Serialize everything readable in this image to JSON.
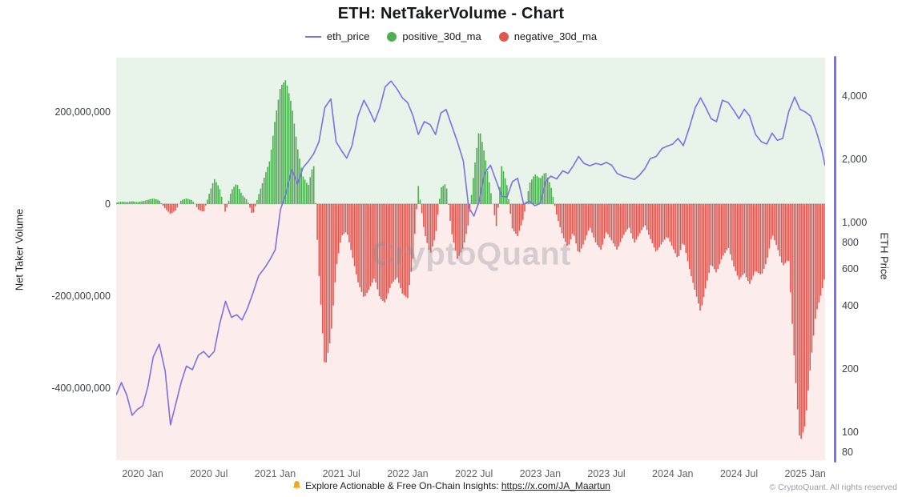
{
  "title": "ETH: NetTakerVolume - Chart",
  "watermark": "CryptoQuant",
  "copyright": "© CryptoQuant. All rights reserved",
  "colors": {
    "price": "#7c70e2",
    "positive": "#4caf50",
    "negative": "#e15750",
    "bell": "#f5a623"
  },
  "legend": {
    "items": [
      {
        "label": "eth_price",
        "marker": "line"
      },
      {
        "label": "positive_30d_ma",
        "marker": "dot"
      },
      {
        "label": "negative_30d_ma",
        "marker": "dot"
      }
    ]
  },
  "footer": {
    "prefix": "Explore Actionable & Free On-Chain Insights:",
    "link": "https://x.com/JA_Maartun"
  },
  "chart_data": {
    "type": "combo",
    "title": "ETH: NetTakerVolume - Chart",
    "background": {
      "positive": "#e8f4ea",
      "negative": "#fdecec"
    },
    "x_axis": {
      "unit": "decimal_year",
      "domain": [
        2019.8,
        2025.15
      ],
      "ticks": [
        {
          "value": 2020.0,
          "label": "2020 Jan"
        },
        {
          "value": 2020.5,
          "label": "2020 Jul"
        },
        {
          "value": 2021.0,
          "label": "2021 Jan"
        },
        {
          "value": 2021.5,
          "label": "2021 Jul"
        },
        {
          "value": 2022.0,
          "label": "2022 Jan"
        },
        {
          "value": 2022.5,
          "label": "2022 Jul"
        },
        {
          "value": 2023.0,
          "label": "2023 Jan"
        },
        {
          "value": 2023.5,
          "label": "2023 Jul"
        },
        {
          "value": 2024.0,
          "label": "2024 Jan"
        },
        {
          "value": 2024.5,
          "label": "2024 Jul"
        },
        {
          "value": 2025.0,
          "label": "2025 Jan"
        }
      ]
    },
    "left_axis": {
      "title": "Net Taker Volume",
      "scale": "linear",
      "unit": "millions",
      "min": -557,
      "max": 318,
      "ticks": [
        {
          "value": 200,
          "label": "200,000,000"
        },
        {
          "value": 0,
          "label": "0"
        },
        {
          "value": -200,
          "label": "-200,000,000"
        },
        {
          "value": -400,
          "label": "-400,000,000"
        }
      ]
    },
    "right_axis": {
      "title": "ETH Price",
      "scale": "log",
      "min": 73.3,
      "max": 6100,
      "ticks": [
        {
          "value": 4000,
          "label": "4,000"
        },
        {
          "value": 2000,
          "label": "2,000"
        },
        {
          "value": 1000,
          "label": "1,000"
        },
        {
          "value": 800,
          "label": "800"
        },
        {
          "value": 600,
          "label": "600"
        },
        {
          "value": 400,
          "label": "400"
        },
        {
          "value": 200,
          "label": "200"
        },
        {
          "value": 100,
          "label": "100"
        },
        {
          "value": 80,
          "label": "80"
        }
      ]
    },
    "series": [
      {
        "name": "eth_price",
        "type": "line",
        "axis": "right",
        "points": [
          [
            2019.8,
            150
          ],
          [
            2019.84,
            172
          ],
          [
            2019.88,
            150
          ],
          [
            2019.92,
            120
          ],
          [
            2019.96,
            128
          ],
          [
            2020.0,
            133
          ],
          [
            2020.04,
            165
          ],
          [
            2020.08,
            228
          ],
          [
            2020.125,
            262
          ],
          [
            2020.17,
            195
          ],
          [
            2020.21,
            108
          ],
          [
            2020.25,
            136
          ],
          [
            2020.29,
            172
          ],
          [
            2020.33,
            206
          ],
          [
            2020.375,
            198
          ],
          [
            2020.42,
            232
          ],
          [
            2020.46,
            242
          ],
          [
            2020.5,
            227
          ],
          [
            2020.54,
            242
          ],
          [
            2020.58,
            325
          ],
          [
            2020.625,
            420
          ],
          [
            2020.67,
            352
          ],
          [
            2020.71,
            362
          ],
          [
            2020.75,
            342
          ],
          [
            2020.79,
            388
          ],
          [
            2020.83,
            455
          ],
          [
            2020.875,
            555
          ],
          [
            2020.92,
            605
          ],
          [
            2020.96,
            662
          ],
          [
            2021.0,
            738
          ],
          [
            2021.04,
            1150
          ],
          [
            2021.08,
            1360
          ],
          [
            2021.125,
            1780
          ],
          [
            2021.17,
            1520
          ],
          [
            2021.21,
            1820
          ],
          [
            2021.25,
            1950
          ],
          [
            2021.29,
            2120
          ],
          [
            2021.33,
            2420
          ],
          [
            2021.375,
            3520
          ],
          [
            2021.42,
            3880
          ],
          [
            2021.46,
            2420
          ],
          [
            2021.5,
            2200
          ],
          [
            2021.54,
            2020
          ],
          [
            2021.58,
            2320
          ],
          [
            2021.625,
            3220
          ],
          [
            2021.67,
            3820
          ],
          [
            2021.71,
            3420
          ],
          [
            2021.75,
            3020
          ],
          [
            2021.79,
            3520
          ],
          [
            2021.83,
            4420
          ],
          [
            2021.875,
            4720
          ],
          [
            2021.92,
            4320
          ],
          [
            2021.96,
            3920
          ],
          [
            2022.0,
            3720
          ],
          [
            2022.04,
            3220
          ],
          [
            2022.08,
            2620
          ],
          [
            2022.125,
            3020
          ],
          [
            2022.17,
            2920
          ],
          [
            2022.21,
            2620
          ],
          [
            2022.25,
            3320
          ],
          [
            2022.29,
            3450
          ],
          [
            2022.33,
            2920
          ],
          [
            2022.375,
            2420
          ],
          [
            2022.42,
            1960
          ],
          [
            2022.46,
            1180
          ],
          [
            2022.5,
            1070
          ],
          [
            2022.54,
            1260
          ],
          [
            2022.58,
            1720
          ],
          [
            2022.625,
            1870
          ],
          [
            2022.67,
            1560
          ],
          [
            2022.71,
            1330
          ],
          [
            2022.75,
            1320
          ],
          [
            2022.79,
            1560
          ],
          [
            2022.83,
            1620
          ],
          [
            2022.875,
            1220
          ],
          [
            2022.92,
            1260
          ],
          [
            2022.96,
            1200
          ],
          [
            2023.0,
            1230
          ],
          [
            2023.04,
            1560
          ],
          [
            2023.08,
            1660
          ],
          [
            2023.125,
            1610
          ],
          [
            2023.17,
            1760
          ],
          [
            2023.21,
            1710
          ],
          [
            2023.25,
            1860
          ],
          [
            2023.29,
            2060
          ],
          [
            2023.33,
            1910
          ],
          [
            2023.375,
            1860
          ],
          [
            2023.42,
            1910
          ],
          [
            2023.46,
            1880
          ],
          [
            2023.5,
            1930
          ],
          [
            2023.54,
            1870
          ],
          [
            2023.58,
            1710
          ],
          [
            2023.625,
            1660
          ],
          [
            2023.67,
            1630
          ],
          [
            2023.71,
            1600
          ],
          [
            2023.75,
            1680
          ],
          [
            2023.79,
            1800
          ],
          [
            2023.83,
            2010
          ],
          [
            2023.875,
            2060
          ],
          [
            2023.92,
            2250
          ],
          [
            2023.96,
            2310
          ],
          [
            2024.0,
            2360
          ],
          [
            2024.04,
            2510
          ],
          [
            2024.08,
            2320
          ],
          [
            2024.125,
            2820
          ],
          [
            2024.17,
            3520
          ],
          [
            2024.21,
            3920
          ],
          [
            2024.25,
            3520
          ],
          [
            2024.29,
            3120
          ],
          [
            2024.33,
            3020
          ],
          [
            2024.375,
            3820
          ],
          [
            2024.42,
            3720
          ],
          [
            2024.46,
            3420
          ],
          [
            2024.5,
            3120
          ],
          [
            2024.54,
            3460
          ],
          [
            2024.58,
            3220
          ],
          [
            2024.625,
            2620
          ],
          [
            2024.67,
            2420
          ],
          [
            2024.71,
            2360
          ],
          [
            2024.75,
            2660
          ],
          [
            2024.79,
            2460
          ],
          [
            2024.83,
            2510
          ],
          [
            2024.875,
            3360
          ],
          [
            2024.92,
            3960
          ],
          [
            2024.96,
            3460
          ],
          [
            2025.0,
            3360
          ],
          [
            2025.04,
            3210
          ],
          [
            2025.08,
            2760
          ],
          [
            2025.125,
            2210
          ],
          [
            2025.15,
            1860
          ]
        ]
      },
      {
        "name": "net_taker_volume_30d_ma",
        "type": "bar",
        "axis": "left",
        "unit": "millions",
        "positive_name": "positive_30d_ma",
        "negative_name": "negative_30d_ma",
        "points": [
          [
            2019.8,
            3
          ],
          [
            2019.84,
            5
          ],
          [
            2019.88,
            4
          ],
          [
            2019.92,
            6
          ],
          [
            2019.96,
            4
          ],
          [
            2020.0,
            6
          ],
          [
            2020.04,
            9
          ],
          [
            2020.08,
            12
          ],
          [
            2020.125,
            8
          ],
          [
            2020.17,
            -10
          ],
          [
            2020.21,
            -22
          ],
          [
            2020.25,
            -14
          ],
          [
            2020.29,
            8
          ],
          [
            2020.33,
            12
          ],
          [
            2020.375,
            8
          ],
          [
            2020.42,
            -12
          ],
          [
            2020.46,
            -18
          ],
          [
            2020.5,
            20
          ],
          [
            2020.54,
            55
          ],
          [
            2020.58,
            35
          ],
          [
            2020.625,
            -20
          ],
          [
            2020.67,
            30
          ],
          [
            2020.71,
            45
          ],
          [
            2020.75,
            20
          ],
          [
            2020.79,
            8
          ],
          [
            2020.83,
            -25
          ],
          [
            2020.875,
            20
          ],
          [
            2020.92,
            60
          ],
          [
            2020.96,
            95
          ],
          [
            2021.0,
            185
          ],
          [
            2021.04,
            255
          ],
          [
            2021.08,
            270
          ],
          [
            2021.125,
            215
          ],
          [
            2021.17,
            120
          ],
          [
            2021.21,
            60
          ],
          [
            2021.25,
            40
          ],
          [
            2021.29,
            90
          ],
          [
            2021.33,
            -150
          ],
          [
            2021.375,
            -360
          ],
          [
            2021.42,
            -290
          ],
          [
            2021.46,
            -140
          ],
          [
            2021.5,
            -70
          ],
          [
            2021.54,
            -60
          ],
          [
            2021.58,
            -110
          ],
          [
            2021.625,
            -170
          ],
          [
            2021.67,
            -205
          ],
          [
            2021.71,
            -185
          ],
          [
            2021.75,
            -160
          ],
          [
            2021.79,
            -205
          ],
          [
            2021.83,
            -215
          ],
          [
            2021.875,
            -175
          ],
          [
            2021.92,
            -160
          ],
          [
            2021.96,
            -195
          ],
          [
            2022.0,
            -205
          ],
          [
            2022.04,
            -120
          ],
          [
            2022.08,
            40
          ],
          [
            2022.125,
            -60
          ],
          [
            2022.17,
            -110
          ],
          [
            2022.21,
            -70
          ],
          [
            2022.25,
            35
          ],
          [
            2022.29,
            45
          ],
          [
            2022.33,
            -60
          ],
          [
            2022.375,
            -120
          ],
          [
            2022.42,
            -95
          ],
          [
            2022.46,
            -40
          ],
          [
            2022.5,
            70
          ],
          [
            2022.54,
            165
          ],
          [
            2022.58,
            110
          ],
          [
            2022.625,
            30
          ],
          [
            2022.67,
            -50
          ],
          [
            2022.71,
            85
          ],
          [
            2022.75,
            40
          ],
          [
            2022.79,
            -55
          ],
          [
            2022.83,
            -70
          ],
          [
            2022.875,
            -30
          ],
          [
            2022.92,
            45
          ],
          [
            2022.96,
            65
          ],
          [
            2023.0,
            55
          ],
          [
            2023.04,
            70
          ],
          [
            2023.08,
            40
          ],
          [
            2023.125,
            -25
          ],
          [
            2023.17,
            -70
          ],
          [
            2023.21,
            -95
          ],
          [
            2023.25,
            -60
          ],
          [
            2023.29,
            -110
          ],
          [
            2023.33,
            -85
          ],
          [
            2023.375,
            -50
          ],
          [
            2023.42,
            -85
          ],
          [
            2023.46,
            -100
          ],
          [
            2023.5,
            -60
          ],
          [
            2023.54,
            -80
          ],
          [
            2023.58,
            -100
          ],
          [
            2023.625,
            -70
          ],
          [
            2023.67,
            -50
          ],
          [
            2023.71,
            -85
          ],
          [
            2023.75,
            -65
          ],
          [
            2023.79,
            -45
          ],
          [
            2023.83,
            -75
          ],
          [
            2023.875,
            -105
          ],
          [
            2023.92,
            -85
          ],
          [
            2023.96,
            -70
          ],
          [
            2024.0,
            -95
          ],
          [
            2024.04,
            -120
          ],
          [
            2024.08,
            -80
          ],
          [
            2024.125,
            -140
          ],
          [
            2024.17,
            -190
          ],
          [
            2024.21,
            -235
          ],
          [
            2024.25,
            -180
          ],
          [
            2024.29,
            -130
          ],
          [
            2024.33,
            -150
          ],
          [
            2024.375,
            -115
          ],
          [
            2024.42,
            -95
          ],
          [
            2024.46,
            -135
          ],
          [
            2024.5,
            -165
          ],
          [
            2024.54,
            -150
          ],
          [
            2024.58,
            -175
          ],
          [
            2024.625,
            -145
          ],
          [
            2024.67,
            -155
          ],
          [
            2024.71,
            -125
          ],
          [
            2024.75,
            -65
          ],
          [
            2024.79,
            -95
          ],
          [
            2024.83,
            -135
          ],
          [
            2024.875,
            -120
          ],
          [
            2024.92,
            -350
          ],
          [
            2024.96,
            -520
          ],
          [
            2025.0,
            -480
          ],
          [
            2025.04,
            -350
          ],
          [
            2025.08,
            -240
          ],
          [
            2025.125,
            -190
          ],
          [
            2025.15,
            -155
          ]
        ]
      }
    ]
  }
}
